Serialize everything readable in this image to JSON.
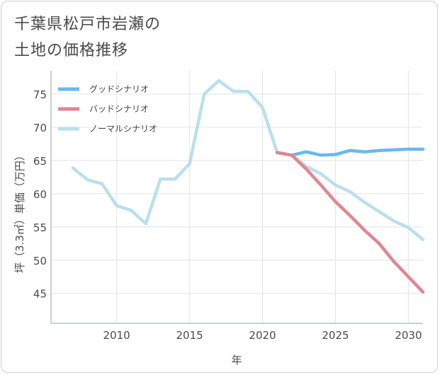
{
  "chart_data": {
    "type": "line",
    "title_lines": [
      "千葉県松戸市岩瀬の",
      "土地の価格推移"
    ],
    "xlabel": "年",
    "ylabel": "坪（3.3㎡）単価（万円）",
    "xlim": [
      2005.5,
      2031
    ],
    "ylim": [
      40.5,
      78.5
    ],
    "x_ticks": [
      2010,
      2015,
      2020,
      2025,
      2030
    ],
    "y_ticks": [
      45,
      50,
      55,
      60,
      65,
      70,
      75
    ],
    "legend_position": "top-left",
    "series": [
      {
        "name": "グッドシナリオ",
        "color": "#6ab8ee",
        "x": [
          2021,
          2022,
          2023,
          2024,
          2025,
          2026,
          2027,
          2028,
          2029,
          2030,
          2031
        ],
        "values": [
          66.2,
          65.8,
          66.3,
          65.8,
          65.9,
          66.5,
          66.3,
          66.5,
          66.6,
          66.7,
          66.7
        ]
      },
      {
        "name": "バッドシナリオ",
        "color": "#e0868f",
        "x": [
          2021,
          2022,
          2023,
          2024,
          2025,
          2026,
          2027,
          2028,
          2029,
          2030,
          2031
        ],
        "values": [
          66.2,
          65.8,
          63.7,
          61.3,
          58.8,
          56.7,
          54.5,
          52.5,
          49.8,
          47.5,
          45.2
        ]
      },
      {
        "name": "ノーマルシナリオ",
        "color": "#badfed",
        "x": [
          2007,
          2008,
          2009,
          2010,
          2011,
          2012,
          2013,
          2014,
          2015,
          2016,
          2017,
          2018,
          2019,
          2020,
          2021,
          2022,
          2023,
          2024,
          2025,
          2026,
          2027,
          2028,
          2029,
          2030,
          2031
        ],
        "values": [
          63.9,
          62.1,
          61.5,
          58.2,
          57.5,
          55.5,
          62.2,
          62.2,
          64.5,
          75.0,
          77.0,
          75.4,
          75.4,
          73.0,
          66.2,
          65.8,
          64.1,
          63.0,
          61.3,
          60.3,
          58.7,
          57.3,
          55.9,
          54.9,
          53.1
        ]
      }
    ]
  }
}
